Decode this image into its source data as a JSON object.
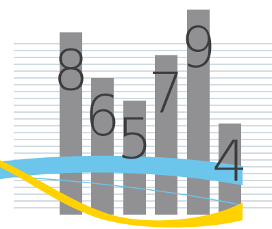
{
  "chart_data": {
    "type": "bar",
    "title": "",
    "xlabel": "",
    "ylabel": "",
    "categories": [
      "8",
      "6",
      "5",
      "7",
      "9",
      "4"
    ],
    "values": [
      8,
      6,
      5,
      7,
      9,
      4
    ],
    "data_labels": [
      "8",
      "6",
      "5",
      "7",
      "9",
      "4"
    ],
    "ylim": [
      0,
      9
    ],
    "grid": true,
    "legend": "none",
    "colors": {
      "bar": "#919194",
      "grid": "#6e8fa3",
      "label": "#3d3d3f",
      "wave_blue": "#6cc5ea",
      "wave_yellow": "#ffd200",
      "background": "#ffffff"
    }
  }
}
